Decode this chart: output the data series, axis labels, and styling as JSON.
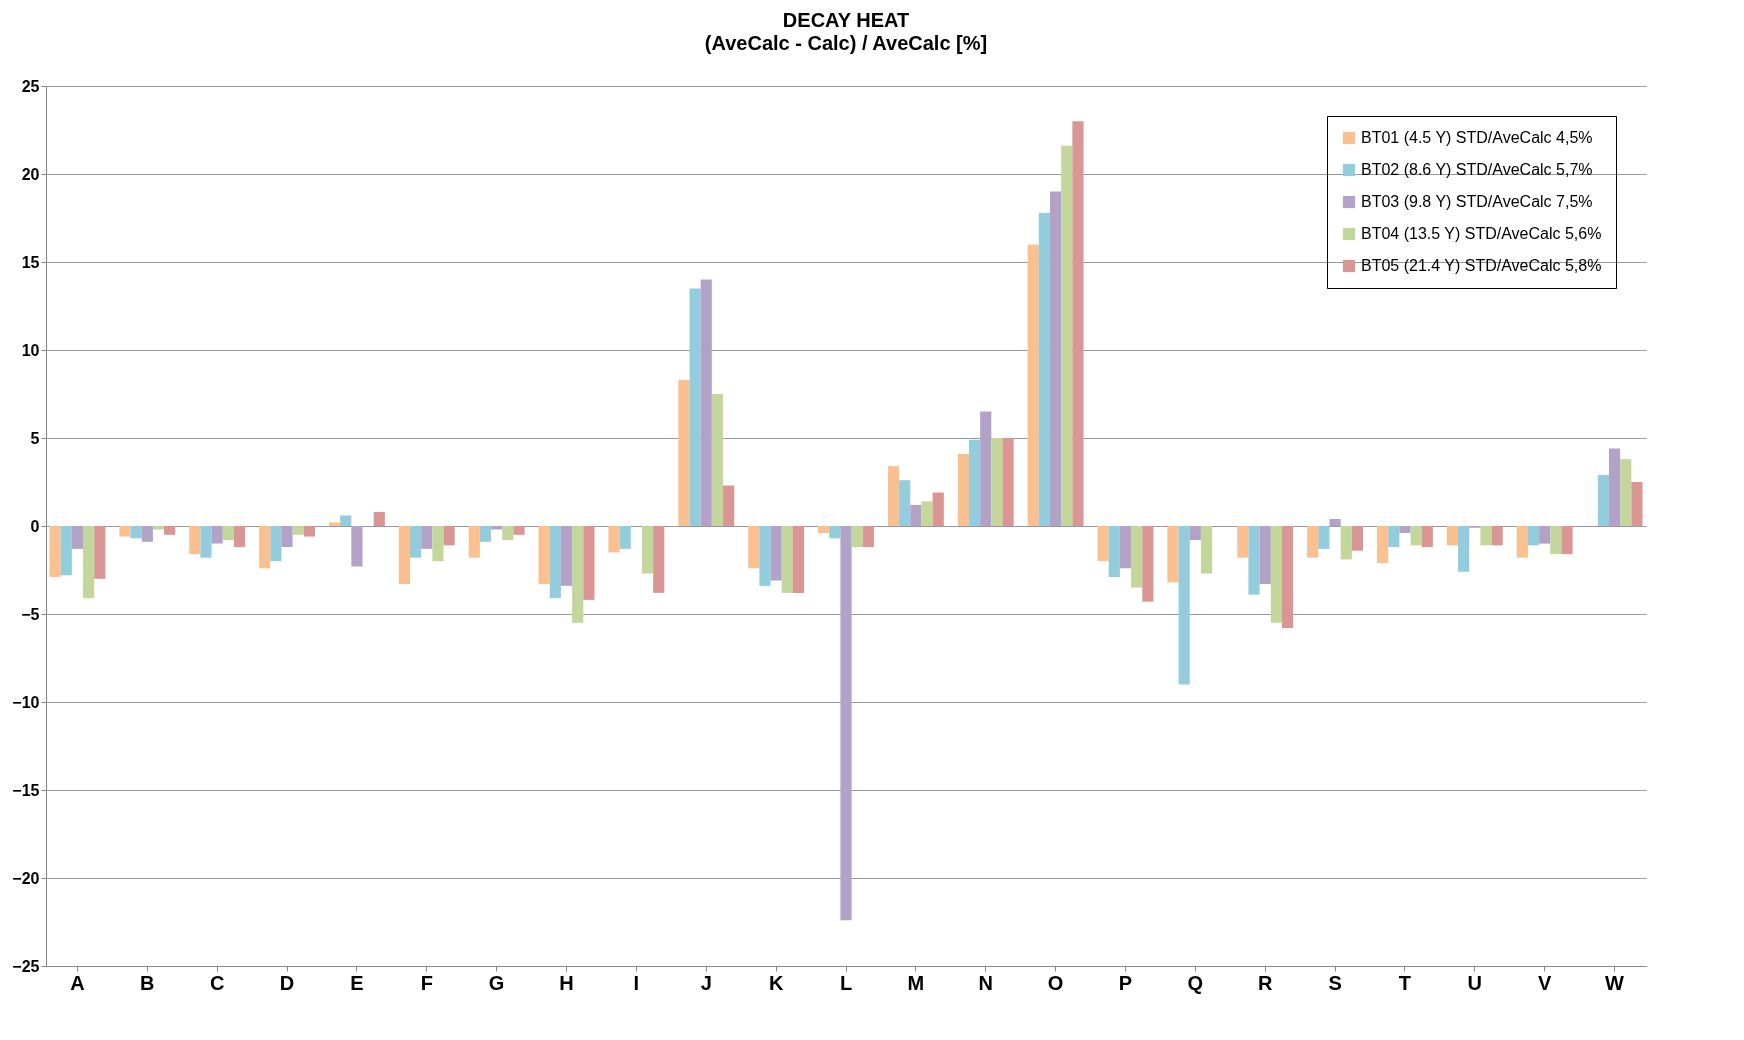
{
  "chart_data": {
    "type": "bar",
    "title": "DECAY HEAT",
    "subtitle": "(AveCalc - Calc) / AveCalc [%]",
    "categories": [
      "A",
      "B",
      "C",
      "D",
      "E",
      "F",
      "G",
      "H",
      "I",
      "J",
      "K",
      "L",
      "M",
      "N",
      "O",
      "P",
      "Q",
      "R",
      "S",
      "T",
      "U",
      "V",
      "W"
    ],
    "series": [
      {
        "name": "BT01 (4.5 Y) STD/AveCalc 4,5%",
        "color": "#fac090",
        "values": [
          -2.9,
          -0.6,
          -1.6,
          -2.4,
          0.2,
          -3.3,
          -1.8,
          -3.3,
          -1.5,
          8.3,
          -2.4,
          -0.4,
          3.4,
          4.1,
          16.0,
          -2.0,
          -3.2,
          -1.8,
          -1.8,
          -2.1,
          -1.1,
          -1.8,
          null
        ]
      },
      {
        "name": "BT02 (8.6 Y) STD/AveCalc 5,7%",
        "color": "#93cddd",
        "values": [
          -2.8,
          -0.7,
          -1.8,
          -2.0,
          0.6,
          -1.8,
          -0.9,
          -4.1,
          -1.3,
          13.5,
          -3.4,
          -0.7,
          2.6,
          4.9,
          17.8,
          -2.9,
          -9.0,
          -3.9,
          -1.3,
          -1.2,
          -2.6,
          -1.1,
          2.9
        ]
      },
      {
        "name": "BT03 (9.8 Y) STD/AveCalc 7,5%",
        "color": "#b3a2c7",
        "values": [
          -1.3,
          -0.9,
          -1.0,
          -1.2,
          -2.3,
          -1.3,
          -0.2,
          -3.4,
          null,
          14.0,
          -3.1,
          -22.4,
          1.2,
          6.5,
          19.0,
          -2.4,
          -0.8,
          -3.3,
          0.4,
          -0.4,
          -0.1,
          -1.0,
          4.4
        ]
      },
      {
        "name": "BT04 (13.5 Y) STD/AveCalc 5,6%",
        "color": "#c3d69b",
        "values": [
          -4.1,
          -0.2,
          -0.8,
          -0.5,
          null,
          -2.0,
          -0.8,
          -5.5,
          -2.7,
          7.5,
          -3.8,
          -1.2,
          1.4,
          5.0,
          21.6,
          -3.5,
          -2.7,
          -5.5,
          -1.9,
          -1.1,
          -1.1,
          -1.6,
          3.8
        ]
      },
      {
        "name": "BT05 (21.4 Y) STD/AveCalc 5,8%",
        "color": "#d99694",
        "values": [
          -3.0,
          -0.5,
          -1.2,
          -0.6,
          0.8,
          -1.1,
          -0.5,
          -4.2,
          -3.8,
          2.3,
          -3.8,
          -1.2,
          1.9,
          5.0,
          23.0,
          -4.3,
          null,
          -5.8,
          -1.4,
          -1.2,
          -1.1,
          -1.6,
          2.5
        ]
      }
    ],
    "ylim": [
      -25,
      25
    ],
    "yticks": [
      -25,
      -20,
      -15,
      -10,
      -5,
      0,
      5,
      10,
      15,
      20,
      25
    ],
    "grid": "y",
    "legend": "top right"
  }
}
